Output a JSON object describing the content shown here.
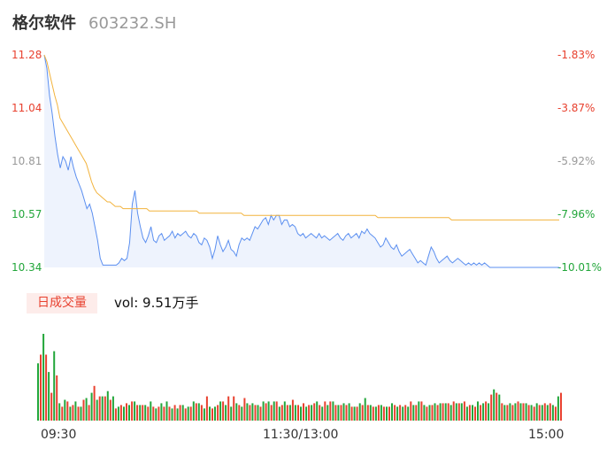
{
  "header": {
    "name": "格尔软件",
    "code": "603232.SH"
  },
  "colors": {
    "up": "#e8412f",
    "down": "#22a63a",
    "neutral": "#999999",
    "price_line": "#5b8ff0",
    "avg_line": "#f2b33d"
  },
  "volume": {
    "badge": "日成交量",
    "text": "vol: 9.51万手"
  },
  "chart_data": [
    {
      "type": "line",
      "y_ticks_left": [
        "11.28",
        "11.04",
        "10.81",
        "10.57",
        "10.34"
      ],
      "y_ticks_right": [
        "-1.83%",
        "-3.87%",
        "-5.92%",
        "-7.96%",
        "-10.01%"
      ],
      "tick_colors": [
        "#e8412f",
        "#e8412f",
        "#999999",
        "#22a63a",
        "#22a63a"
      ],
      "ylim": [
        10.34,
        11.28
      ],
      "x_labels": [
        "09:30",
        "11:30/13:00",
        "15:00"
      ],
      "series": [
        {
          "values": [
            11.28,
            11.22,
            11.1,
            11.02,
            10.92,
            10.84,
            10.78,
            10.83,
            10.81,
            10.77,
            10.83,
            10.78,
            10.74,
            10.71,
            10.68,
            10.64,
            10.6,
            10.62,
            10.58,
            10.52,
            10.46,
            10.38,
            10.35,
            10.35,
            10.35,
            10.35,
            10.35,
            10.35,
            10.36,
            10.38,
            10.37,
            10.38,
            10.45,
            10.62,
            10.68,
            10.58,
            10.52,
            10.47,
            10.45,
            10.48,
            10.52,
            10.46,
            10.45,
            10.48,
            10.49,
            10.46,
            10.47,
            10.48,
            10.5,
            10.47,
            10.49,
            10.48,
            10.49,
            10.5,
            10.48,
            10.47,
            10.49,
            10.48,
            10.45,
            10.44,
            10.47,
            10.46,
            10.43,
            10.38,
            10.42,
            10.48,
            10.44,
            10.41,
            10.43,
            10.46,
            10.42,
            10.41,
            10.39,
            10.44,
            10.47,
            10.46,
            10.47,
            10.46,
            10.49,
            10.52,
            10.51,
            10.53,
            10.55,
            10.56,
            10.53,
            10.57,
            10.55,
            10.57,
            10.57,
            10.53,
            10.55,
            10.55,
            10.52,
            10.53,
            10.52,
            10.49,
            10.48,
            10.49,
            10.47,
            10.48,
            10.49,
            10.48,
            10.47,
            10.49,
            10.47,
            10.48,
            10.47,
            10.46,
            10.47,
            10.48,
            10.49,
            10.47,
            10.46,
            10.48,
            10.49,
            10.47,
            10.48,
            10.49,
            10.47,
            10.5,
            10.49,
            10.51,
            10.49,
            10.48,
            10.47,
            10.45,
            10.43,
            10.44,
            10.47,
            10.45,
            10.43,
            10.42,
            10.44,
            10.41,
            10.39,
            10.4,
            10.41,
            10.42,
            10.4,
            10.38,
            10.36,
            10.37,
            10.36,
            10.35,
            10.39,
            10.43,
            10.41,
            10.38,
            10.36,
            10.37,
            10.38,
            10.39,
            10.37,
            10.36,
            10.37,
            10.38,
            10.37,
            10.36,
            10.35,
            10.36,
            10.35,
            10.36,
            10.35,
            10.36,
            10.35,
            10.36,
            10.35,
            10.34,
            10.34,
            10.34,
            10.34,
            10.34,
            10.34,
            10.34,
            10.34,
            10.34,
            10.34,
            10.34,
            10.34,
            10.34,
            10.34,
            10.34,
            10.34,
            10.34,
            10.34,
            10.34,
            10.34,
            10.34,
            10.34,
            10.34,
            10.34,
            10.34,
            10.34,
            10.34
          ]
        },
        {
          "values": [
            11.28,
            11.25,
            11.2,
            11.15,
            11.1,
            11.06,
            11.0,
            10.98,
            10.96,
            10.94,
            10.92,
            10.9,
            10.88,
            10.86,
            10.84,
            10.82,
            10.8,
            10.76,
            10.72,
            10.69,
            10.67,
            10.66,
            10.65,
            10.64,
            10.63,
            10.63,
            10.62,
            10.61,
            10.61,
            10.61,
            10.6,
            10.6,
            10.6,
            10.6,
            10.6,
            10.6,
            10.6,
            10.6,
            10.6,
            10.6,
            10.59,
            10.59,
            10.59,
            10.59,
            10.59,
            10.59,
            10.59,
            10.59,
            10.59,
            10.59,
            10.59,
            10.59,
            10.59,
            10.59,
            10.59,
            10.59,
            10.59,
            10.59,
            10.59,
            10.58,
            10.58,
            10.58,
            10.58,
            10.58,
            10.58,
            10.58,
            10.58,
            10.58,
            10.58,
            10.58,
            10.58,
            10.58,
            10.58,
            10.58,
            10.58,
            10.58,
            10.57,
            10.57,
            10.57,
            10.57,
            10.57,
            10.57,
            10.57,
            10.57,
            10.57,
            10.57,
            10.57,
            10.57,
            10.57,
            10.57,
            10.57,
            10.57,
            10.57,
            10.57,
            10.57,
            10.57,
            10.57,
            10.57,
            10.57,
            10.57,
            10.57,
            10.57,
            10.57,
            10.57,
            10.57,
            10.57,
            10.57,
            10.57,
            10.57,
            10.57,
            10.57,
            10.57,
            10.57,
            10.57,
            10.57,
            10.57,
            10.57,
            10.57,
            10.57,
            10.57,
            10.57,
            10.57,
            10.57,
            10.57,
            10.57,
            10.57,
            10.57,
            10.56,
            10.56,
            10.56,
            10.56,
            10.56,
            10.56,
            10.56,
            10.56,
            10.56,
            10.56,
            10.56,
            10.56,
            10.56,
            10.56,
            10.56,
            10.56,
            10.56,
            10.56,
            10.56,
            10.56,
            10.56,
            10.56,
            10.56,
            10.56,
            10.56,
            10.56,
            10.56,
            10.56,
            10.55,
            10.55,
            10.55,
            10.55,
            10.55,
            10.55,
            10.55,
            10.55,
            10.55,
            10.55,
            10.55,
            10.55,
            10.55,
            10.55,
            10.55,
            10.55,
            10.55,
            10.55,
            10.55,
            10.55,
            10.55,
            10.55,
            10.55,
            10.55,
            10.55,
            10.55,
            10.55,
            10.55,
            10.55,
            10.55,
            10.55,
            10.55,
            10.55,
            10.55,
            10.55,
            10.55,
            10.55,
            10.55,
            10.55,
            10.55,
            10.55,
            10.55
          ]
        }
      ]
    },
    {
      "type": "bar",
      "values": [
        33,
        38,
        50,
        38,
        28,
        16,
        40,
        26,
        10,
        8,
        12,
        11,
        8,
        9,
        11,
        8,
        8,
        12,
        13,
        9,
        16,
        20,
        12,
        14,
        14,
        14,
        17,
        12,
        14,
        7,
        8,
        9,
        8,
        10,
        9,
        11,
        11,
        9,
        9,
        9,
        9,
        8,
        11,
        8,
        7,
        8,
        10,
        8,
        11,
        8,
        7,
        9,
        7,
        9,
        9,
        7,
        8,
        8,
        11,
        10,
        10,
        9,
        7,
        14,
        8,
        7,
        8,
        9,
        11,
        11,
        9,
        14,
        8,
        14,
        10,
        9,
        8,
        13,
        10,
        9,
        10,
        9,
        9,
        8,
        11,
        10,
        11,
        9,
        11,
        11,
        8,
        9,
        11,
        9,
        9,
        12,
        9,
        9,
        8,
        10,
        8,
        9,
        9,
        10,
        11,
        9,
        8,
        11,
        9,
        11,
        11,
        9,
        9,
        9,
        10,
        9,
        10,
        8,
        8,
        8,
        10,
        9,
        13,
        9,
        9,
        8,
        8,
        9,
        9,
        8,
        8,
        8,
        10,
        9,
        8,
        9,
        8,
        9,
        8,
        11,
        9,
        9,
        11,
        11,
        9,
        8,
        9,
        9,
        10,
        9,
        10,
        10,
        10,
        10,
        9,
        11,
        10,
        10,
        10,
        11,
        8,
        9,
        9,
        8,
        11,
        9,
        10,
        11,
        10,
        15,
        18,
        16,
        15,
        10,
        9,
        9,
        10,
        9,
        10,
        11,
        10,
        10,
        10,
        9,
        9,
        8,
        10,
        9,
        9,
        10,
        9,
        10,
        9,
        8,
        14,
        16
      ],
      "directions": [
        "d",
        "u",
        "d",
        "u",
        "d",
        "u",
        "d",
        "u",
        "d",
        "u",
        "d",
        "u",
        "d",
        "u",
        "d",
        "u",
        "d",
        "u",
        "d",
        "u",
        "d",
        "u",
        "d",
        "u",
        "d",
        "u",
        "d",
        "u",
        "d",
        "u",
        "d",
        "u",
        "d",
        "u",
        "d",
        "u",
        "d",
        "u",
        "d",
        "u",
        "d",
        "u",
        "d",
        "u",
        "d",
        "u",
        "d",
        "u",
        "d",
        "u",
        "d",
        "u",
        "d",
        "u",
        "d",
        "u",
        "d",
        "u",
        "d",
        "u",
        "d",
        "u",
        "d",
        "u",
        "d",
        "u",
        "d",
        "u",
        "d",
        "u",
        "d",
        "u",
        "d",
        "u",
        "d",
        "u",
        "d",
        "u",
        "d",
        "u",
        "d",
        "u",
        "d",
        "u",
        "d",
        "u",
        "d",
        "u",
        "d",
        "u",
        "d",
        "u",
        "d",
        "u",
        "d",
        "u",
        "d",
        "u",
        "d",
        "u",
        "d",
        "u",
        "d",
        "u",
        "d",
        "u",
        "d",
        "u",
        "d",
        "u",
        "d",
        "u",
        "d",
        "u",
        "d",
        "u",
        "d",
        "u",
        "d",
        "u",
        "d",
        "u",
        "d",
        "u",
        "d",
        "u",
        "d",
        "u",
        "d",
        "u",
        "d",
        "u",
        "d",
        "u",
        "d",
        "u",
        "d",
        "u",
        "d",
        "u",
        "d",
        "u",
        "d",
        "u",
        "d",
        "u",
        "d",
        "u",
        "d",
        "u",
        "d",
        "u",
        "d",
        "u",
        "d",
        "u",
        "d",
        "u",
        "d",
        "u",
        "d",
        "u",
        "d",
        "u",
        "d",
        "u",
        "d",
        "u",
        "d",
        "u",
        "d",
        "u",
        "d",
        "u",
        "d",
        "u",
        "d",
        "u",
        "d",
        "u",
        "d",
        "u",
        "d",
        "u",
        "d",
        "u",
        "d",
        "u",
        "d",
        "u",
        "d",
        "u",
        "d",
        "u",
        "d",
        "u",
        "d",
        "u"
      ]
    }
  ]
}
